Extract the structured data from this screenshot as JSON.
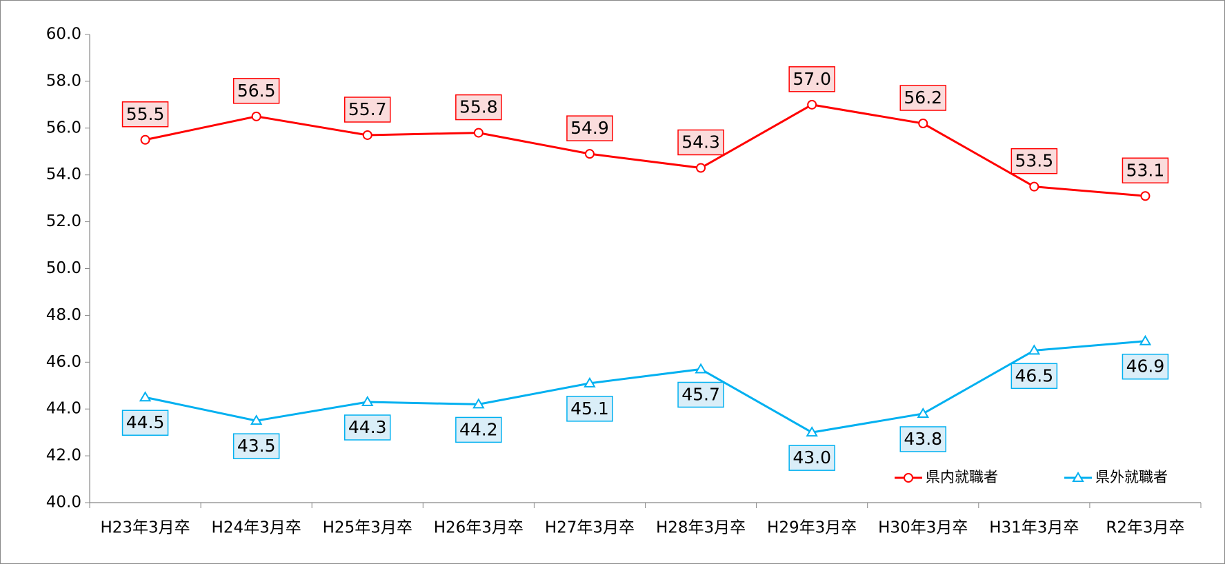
{
  "chart_data": {
    "type": "line",
    "categories": [
      "H23年3月卒",
      "H24年3月卒",
      "H25年3月卒",
      "H26年3月卒",
      "H27年3月卒",
      "H28年3月卒",
      "H29年3月卒",
      "H30年3月卒",
      "H31年3月卒",
      "R2年3月卒"
    ],
    "series": [
      {
        "name": "県内就職者",
        "color": "#ff0000",
        "label_fill": "#fadcdc",
        "marker": "circle",
        "values": [
          55.5,
          56.5,
          55.7,
          55.8,
          54.9,
          54.3,
          57.0,
          56.2,
          53.5,
          53.1
        ],
        "value_labels": [
          "55.5",
          "56.5",
          "55.7",
          "55.8",
          "54.9",
          "54.3",
          "57.0",
          "56.2",
          "53.5",
          "53.1"
        ]
      },
      {
        "name": "県外就職者",
        "color": "#00b0f0",
        "label_fill": "#daeef8",
        "marker": "triangle",
        "values": [
          44.5,
          43.5,
          44.3,
          44.2,
          45.1,
          45.7,
          43.0,
          43.8,
          46.5,
          46.9
        ],
        "value_labels": [
          "44.5",
          "43.5",
          "44.3",
          "44.2",
          "45.1",
          "45.7",
          "43.0",
          "43.8",
          "46.5",
          "46.9"
        ]
      }
    ],
    "ylim": [
      40,
      60
    ],
    "yticks": [
      {
        "value": 40,
        "label": "40.0"
      },
      {
        "value": 42,
        "label": "42.0"
      },
      {
        "value": 44,
        "label": "44.0"
      },
      {
        "value": 46,
        "label": "46.0"
      },
      {
        "value": 48,
        "label": "48.0"
      },
      {
        "value": 50,
        "label": "50.0"
      },
      {
        "value": 52,
        "label": "52.0"
      },
      {
        "value": 54,
        "label": "54.0"
      },
      {
        "value": 56,
        "label": "56.0"
      },
      {
        "value": 58,
        "label": "58.0"
      },
      {
        "value": 60,
        "label": "60.0"
      }
    ],
    "grid": false,
    "legend": "lower right"
  }
}
